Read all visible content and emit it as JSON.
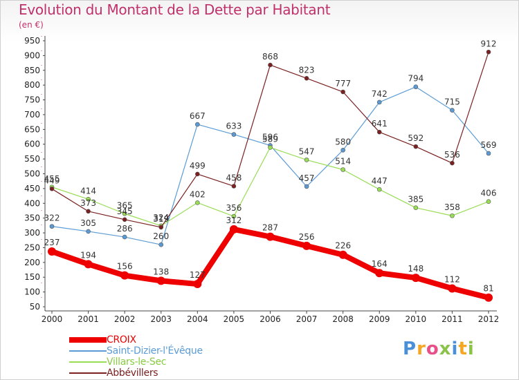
{
  "title": "Evolution du Montant de la Dette par Habitant",
  "subtitle": "(en €)",
  "logo": {
    "text": "Proxiti",
    "letters": [
      {
        "ch": "P",
        "color": "#4a90d9"
      },
      {
        "ch": "r",
        "color": "#f5a623"
      },
      {
        "ch": "o",
        "color": "#e8508a"
      },
      {
        "ch": "x",
        "color": "#8bc34a"
      },
      {
        "ch": "i",
        "color": "#4a90d9"
      },
      {
        "ch": "t",
        "color": "#f5a623"
      },
      {
        "ch": "i",
        "color": "#8bc34a"
      }
    ]
  },
  "chart_data": {
    "type": "line",
    "x": [
      "2000",
      "2001",
      "2002",
      "2003",
      "2004",
      "2005",
      "2006",
      "2007",
      "2008",
      "2009",
      "2010",
      "2011",
      "2012"
    ],
    "ylim": [
      50,
      950
    ],
    "yticks": [
      50,
      100,
      150,
      200,
      250,
      300,
      350,
      400,
      450,
      500,
      550,
      600,
      650,
      700,
      750,
      800,
      850,
      900,
      950
    ],
    "grid": false,
    "legend_position": "bottom-left",
    "series": [
      {
        "name": "CROIX",
        "color": "#ee0000",
        "label_color": "#ee0000",
        "values": [
          237,
          194,
          156,
          138,
          127,
          312,
          287,
          256,
          226,
          164,
          148,
          112,
          81
        ]
      },
      {
        "name": "Saint-Dizier-l'Évêque",
        "color": "#5b9bd5",
        "label_color": "#5b9bd5",
        "values": [
          322,
          305,
          286,
          260,
          667,
          633,
          596,
          457,
          580,
          742,
          794,
          715,
          569
        ]
      },
      {
        "name": "Villars-le-Sec",
        "color": "#99dd55",
        "label_color": "#88cc44",
        "values": [
          455,
          414,
          365,
          324,
          402,
          356,
          589,
          547,
          514,
          447,
          385,
          358,
          406
        ]
      },
      {
        "name": "Abbévillers",
        "color": "#7a2020",
        "label_color": "#7a2020",
        "values": [
          449,
          373,
          345,
          319,
          499,
          458,
          868,
          823,
          777,
          641,
          592,
          536,
          912
        ]
      }
    ]
  }
}
